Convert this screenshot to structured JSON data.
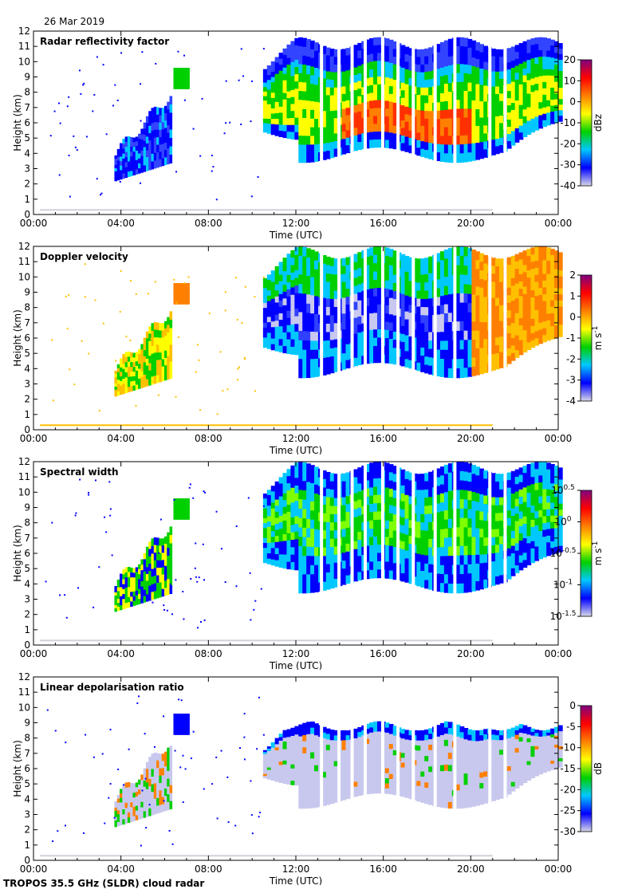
{
  "date": "26 Mar 2019",
  "footer": "TROPOS 35.5 GHz (SLDR) cloud radar",
  "chart_data": [
    {
      "type": "heatmap",
      "title": "Radar reflectivity factor",
      "xlabel": "Time (UTC)",
      "ylabel": "Height (km)",
      "x_ticks": [
        "00:00",
        "04:00",
        "08:00",
        "12:00",
        "16:00",
        "20:00",
        "00:00"
      ],
      "xlim_hours": [
        0,
        24
      ],
      "ylim": [
        0,
        12
      ],
      "y_ticks": [
        0,
        1,
        2,
        3,
        4,
        5,
        6,
        7,
        8,
        9,
        10,
        11,
        12
      ],
      "colorbar": {
        "label": "dBz",
        "range": [
          -40,
          20
        ],
        "ticks": [
          "-40",
          "-30",
          "-20",
          "-10",
          "0",
          "10",
          "20"
        ],
        "colors": [
          "#d8d8e8",
          "#0000ff",
          "#00c8ff",
          "#00d000",
          "#ffff00",
          "#ff8000",
          "#ff0000",
          "#800080"
        ]
      },
      "features": [
        {
          "hours": [
            3.7,
            6.3
          ],
          "heights_km": [
            2.2,
            8.2
          ],
          "peak": -20
        },
        {
          "hours": [
            10.5,
            23.8
          ],
          "heights_km": [
            3.9,
            11.5
          ],
          "peak": 10
        }
      ]
    },
    {
      "type": "heatmap",
      "title": "Doppler velocity",
      "xlabel": "Time (UTC)",
      "ylabel": "Height (km)",
      "x_ticks": [
        "00:00",
        "04:00",
        "08:00",
        "12:00",
        "16:00",
        "20:00",
        "00:00"
      ],
      "xlim_hours": [
        0,
        24
      ],
      "ylim": [
        0,
        12
      ],
      "y_ticks": [
        0,
        1,
        2,
        3,
        4,
        5,
        6,
        7,
        8,
        9,
        10,
        11,
        12
      ],
      "colorbar": {
        "label": "m s-1",
        "label_main": "m s",
        "label_sup": "-1",
        "range": [
          -4,
          2
        ],
        "ticks": [
          "-4",
          "-3",
          "-2",
          "-1",
          "0",
          "1",
          "2"
        ],
        "colors": [
          "#d8d8e8",
          "#0000ff",
          "#00c8ff",
          "#00d000",
          "#ffff00",
          "#ff8000",
          "#ff0000",
          "#800080"
        ]
      },
      "features": [
        {
          "hours": [
            3.7,
            6.3
          ],
          "heights_km": [
            2.2,
            8.5
          ],
          "value": -1.5
        },
        {
          "hours": [
            10.5,
            24
          ],
          "heights_km": [
            3.9,
            11.9
          ],
          "value": -3
        }
      ]
    },
    {
      "type": "heatmap",
      "title": "Spectral width",
      "xlabel": "Time (UTC)",
      "ylabel": "Height (km)",
      "x_ticks": [
        "00:00",
        "04:00",
        "08:00",
        "12:00",
        "16:00",
        "20:00",
        "00:00"
      ],
      "xlim_hours": [
        0,
        24
      ],
      "ylim": [
        0,
        12
      ],
      "y_ticks": [
        0,
        1,
        2,
        3,
        4,
        5,
        6,
        7,
        8,
        9,
        10,
        11,
        12
      ],
      "colorbar": {
        "label": "m s-1",
        "label_main": "m s",
        "label_sup": "-1",
        "scale": "log",
        "range": [
          -1.5,
          0.5
        ],
        "ticks": [
          {
            "base": "10",
            "exp": "-1.5"
          },
          {
            "base": "10",
            "exp": "-1"
          },
          {
            "base": "10",
            "exp": "-0.5"
          },
          {
            "base": "10",
            "exp": "0"
          },
          {
            "base": "10",
            "exp": "0.5"
          }
        ],
        "colors": [
          "#d8d8e8",
          "#0000ff",
          "#00c8ff",
          "#00d000",
          "#ffff00",
          "#ff8000",
          "#ff0000",
          "#800080"
        ]
      },
      "features": [
        {
          "hours": [
            3.7,
            6.3
          ],
          "heights_km": [
            2.2,
            8.2
          ],
          "value": -0.6
        },
        {
          "hours": [
            10.5,
            24
          ],
          "heights_km": [
            3.9,
            11.9
          ],
          "value": -0.8
        }
      ]
    },
    {
      "type": "heatmap",
      "title": "Linear depolarisation ratio",
      "xlabel": "Time (UTC)",
      "ylabel": "Height (km)",
      "x_ticks": [
        "00:00",
        "04:00",
        "08:00",
        "12:00",
        "16:00",
        "20:00",
        "00:00"
      ],
      "xlim_hours": [
        0,
        24
      ],
      "ylim": [
        0,
        12
      ],
      "y_ticks": [
        0,
        1,
        2,
        3,
        4,
        5,
        6,
        7,
        8,
        9,
        10,
        11,
        12
      ],
      "colorbar": {
        "label": "dB",
        "range": [
          -30,
          0
        ],
        "ticks": [
          "-30",
          "-25",
          "-20",
          "-15",
          "-10",
          "-5",
          "0"
        ],
        "colors": [
          "#d8d8e8",
          "#0000ff",
          "#00c8ff",
          "#00d000",
          "#ffff00",
          "#ff8000",
          "#ff0000",
          "#800080"
        ]
      },
      "features": [
        {
          "hours": [
            3.7,
            6.3
          ],
          "heights_km": [
            2.2,
            7.5
          ],
          "value": -22
        },
        {
          "hours": [
            10.5,
            24
          ],
          "heights_km": [
            3.9,
            9.2
          ],
          "value": -27
        }
      ]
    }
  ]
}
